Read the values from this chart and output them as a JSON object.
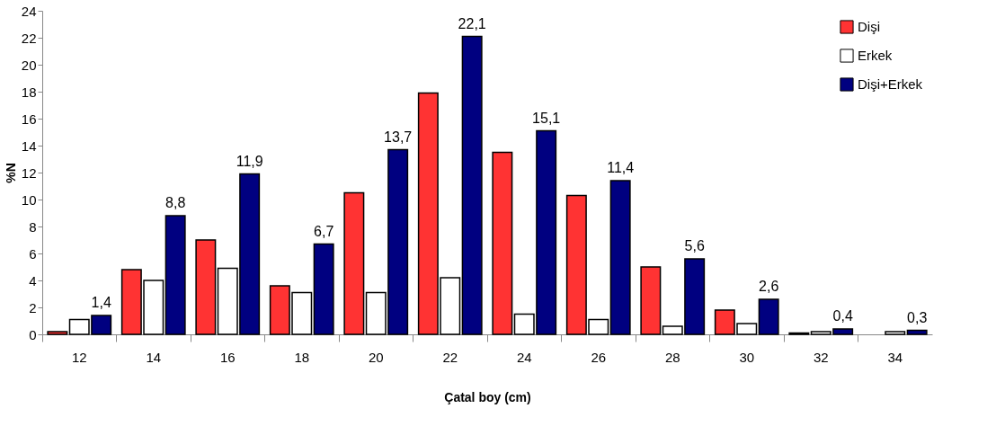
{
  "chart_data": {
    "type": "bar",
    "xlabel": "Çatal boy (cm)",
    "ylabel": "%N",
    "categories": [
      "12",
      "14",
      "16",
      "18",
      "20",
      "22",
      "24",
      "26",
      "28",
      "30",
      "32",
      "34"
    ],
    "series": [
      {
        "name": "Dişi",
        "color": "#ff3333",
        "values": [
          0.2,
          4.8,
          7.0,
          3.6,
          10.5,
          17.9,
          13.5,
          10.3,
          5.0,
          1.8,
          0.1,
          null
        ]
      },
      {
        "name": "Erkek",
        "color": "#ffffff",
        "values": [
          1.1,
          4.0,
          4.9,
          3.1,
          3.1,
          4.2,
          1.5,
          1.1,
          0.6,
          0.8,
          0.2,
          0.2
        ]
      },
      {
        "name": "Dişi+Erkek",
        "color": "#000080",
        "values": [
          1.4,
          8.8,
          11.9,
          6.7,
          13.7,
          22.1,
          15.1,
          11.4,
          5.6,
          2.6,
          0.4,
          0.3
        ],
        "value_labels": [
          "1,4",
          "8,8",
          "11,9",
          "6,7",
          "13,7",
          "22,1",
          "15,1",
          "11,4",
          "5,6",
          "2,6",
          "0,4",
          "0,3"
        ]
      }
    ],
    "ylim": [
      0,
      24
    ],
    "yticks": [
      0,
      2,
      4,
      6,
      8,
      10,
      12,
      14,
      16,
      18,
      20,
      22,
      24
    ],
    "grid": false,
    "legend": "top right"
  }
}
